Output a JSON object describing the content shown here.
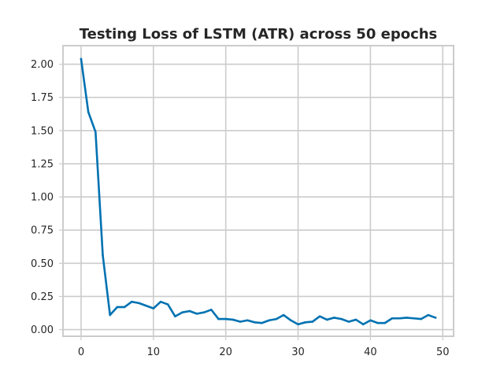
{
  "chart_data": {
    "type": "line",
    "title": "Testing Loss of LSTM (ATR) across 50 epochs",
    "xlabel": "",
    "ylabel": "",
    "xlim": [
      -2.5,
      51.5
    ],
    "ylim": [
      -0.05,
      2.14
    ],
    "xticks": [
      0,
      10,
      20,
      30,
      40,
      50
    ],
    "xtick_labels": [
      "0",
      "10",
      "20",
      "30",
      "40",
      "50"
    ],
    "yticks": [
      0.0,
      0.25,
      0.5,
      0.75,
      1.0,
      1.25,
      1.5,
      1.75,
      2.0
    ],
    "ytick_labels": [
      "0.00",
      "0.25",
      "0.50",
      "0.75",
      "1.00",
      "1.25",
      "1.50",
      "1.75",
      "2.00"
    ],
    "grid": true,
    "legend": false,
    "series": [
      {
        "color": "#0072b2",
        "x": [
          0,
          1,
          2,
          3,
          4,
          5,
          6,
          7,
          8,
          9,
          10,
          11,
          12,
          13,
          14,
          15,
          16,
          17,
          18,
          19,
          20,
          21,
          22,
          23,
          24,
          25,
          26,
          27,
          28,
          29,
          30,
          31,
          32,
          33,
          34,
          35,
          36,
          37,
          38,
          39,
          40,
          41,
          42,
          43,
          44,
          45,
          46,
          47,
          48,
          49
        ],
        "y": [
          2.04,
          1.64,
          1.49,
          0.56,
          0.11,
          0.17,
          0.17,
          0.21,
          0.2,
          0.18,
          0.16,
          0.21,
          0.19,
          0.1,
          0.13,
          0.14,
          0.12,
          0.13,
          0.15,
          0.08,
          0.08,
          0.075,
          0.06,
          0.07,
          0.055,
          0.05,
          0.07,
          0.08,
          0.11,
          0.07,
          0.04,
          0.055,
          0.06,
          0.1,
          0.075,
          0.09,
          0.08,
          0.06,
          0.075,
          0.04,
          0.07,
          0.05,
          0.05,
          0.085,
          0.085,
          0.09,
          0.085,
          0.08,
          0.11,
          0.09
        ]
      }
    ]
  }
}
